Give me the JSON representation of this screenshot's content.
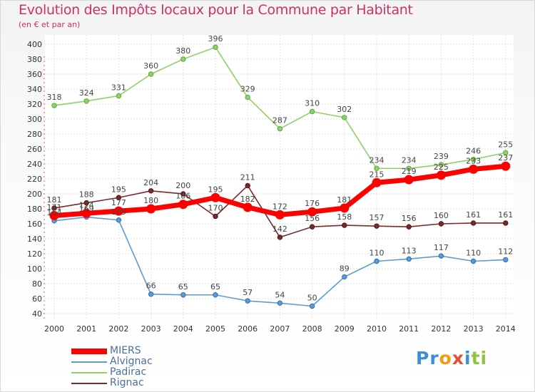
{
  "chart_data": {
    "type": "line",
    "title": "Evolution des Impôts locaux pour la Commune par Habitant",
    "subtitle": "(en € et par an)",
    "xlabel": "",
    "ylabel": "",
    "x": [
      "2000",
      "2001",
      "2002",
      "2003",
      "2004",
      "2005",
      "2006",
      "2007",
      "2008",
      "2009",
      "2010",
      "2011",
      "2012",
      "2013",
      "2014"
    ],
    "ylim": [
      40,
      400
    ],
    "yticks": [
      40,
      60,
      80,
      100,
      120,
      140,
      160,
      180,
      200,
      220,
      240,
      260,
      280,
      300,
      320,
      340,
      360,
      380,
      400
    ],
    "grid": true,
    "legend_position": "bottom-left",
    "series": [
      {
        "name": "MIERS",
        "color": "#ff0000",
        "values": [
          171,
          174,
          177,
          180,
          186,
          195,
          182,
          172,
          176,
          181,
          215,
          219,
          225,
          233,
          237
        ]
      },
      {
        "name": "Alvignac",
        "color": "#5b9bd5",
        "values": [
          164,
          169,
          165,
          66,
          65,
          65,
          57,
          54,
          50,
          89,
          110,
          113,
          117,
          110,
          112
        ]
      },
      {
        "name": "Padirac",
        "color": "#8fd16a",
        "values": [
          318,
          324,
          331,
          360,
          380,
          396,
          329,
          287,
          310,
          302,
          234,
          234,
          239,
          246,
          255
        ]
      },
      {
        "name": "Rignac",
        "color": "#7b2a2a",
        "values": [
          181,
          188,
          195,
          204,
          200,
          170,
          211,
          142,
          156,
          158,
          157,
          156,
          160,
          161,
          161
        ]
      }
    ]
  },
  "logo": {
    "letters": [
      "P",
      "r",
      "o",
      "x",
      "i",
      "t",
      "i"
    ],
    "colors": [
      "#3a8fd8",
      "#3a8fd8",
      "#f39c12",
      "#e74c3c",
      "#3a8fd8",
      "#8dc63f",
      "#8dc63f"
    ]
  }
}
